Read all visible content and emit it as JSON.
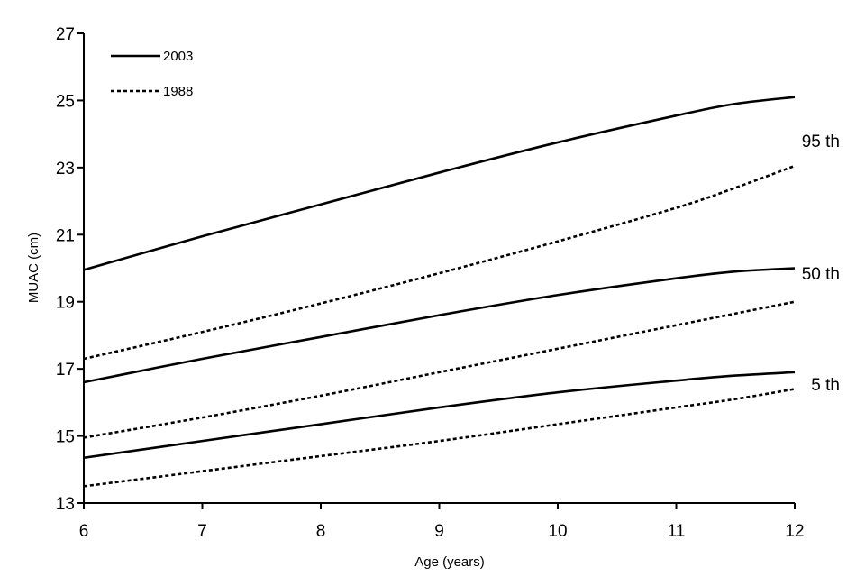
{
  "chart_data": {
    "type": "line",
    "title": "",
    "xlabel": "Age (years)",
    "ylabel": "MUAC (cm)",
    "xlim": [
      6,
      12
    ],
    "ylim": [
      13,
      27
    ],
    "x_ticks": [
      6,
      7,
      8,
      9,
      10,
      11,
      12
    ],
    "y_ticks": [
      13,
      15,
      17,
      19,
      21,
      23,
      25,
      27
    ],
    "grid": false,
    "legend": {
      "placement": "top-left",
      "entries": [
        {
          "label": "2003",
          "style": "solid"
        },
        {
          "label": "1988",
          "style": "dotted"
        }
      ]
    },
    "series": [
      {
        "year": "2003",
        "percentile": "95 th",
        "style": "solid",
        "x": [
          6,
          7,
          8,
          9,
          10,
          11,
          11.5,
          12
        ],
        "y": [
          19.95,
          20.95,
          21.9,
          22.85,
          23.75,
          24.55,
          24.9,
          25.1
        ]
      },
      {
        "year": "1988",
        "percentile": "95 th",
        "style": "dotted",
        "x": [
          6,
          7,
          8,
          9,
          10,
          11,
          11.5,
          12
        ],
        "y": [
          17.3,
          18.1,
          18.95,
          19.85,
          20.8,
          21.8,
          22.4,
          23.05
        ]
      },
      {
        "year": "2003",
        "percentile": "50 th",
        "style": "solid",
        "x": [
          6,
          7,
          8,
          9,
          10,
          11,
          11.5,
          12
        ],
        "y": [
          16.6,
          17.3,
          17.95,
          18.6,
          19.2,
          19.7,
          19.9,
          20.0
        ]
      },
      {
        "year": "1988",
        "percentile": "50 th",
        "style": "dotted",
        "x": [
          6,
          7,
          8,
          9,
          10,
          11,
          11.5,
          12
        ],
        "y": [
          14.95,
          15.55,
          16.2,
          16.9,
          17.6,
          18.3,
          18.65,
          19.0
        ]
      },
      {
        "year": "2003",
        "percentile": "5 th",
        "style": "solid",
        "x": [
          6,
          7,
          8,
          9,
          10,
          11,
          11.5,
          12
        ],
        "y": [
          14.35,
          14.85,
          15.35,
          15.85,
          16.3,
          16.65,
          16.8,
          16.9
        ]
      },
      {
        "year": "1988",
        "percentile": "5 th",
        "style": "dotted",
        "x": [
          6,
          7,
          8,
          9,
          10,
          11,
          11.5,
          12
        ],
        "y": [
          13.5,
          13.95,
          14.4,
          14.85,
          15.35,
          15.85,
          16.1,
          16.4
        ]
      }
    ],
    "percentile_labels": [
      {
        "text": "95 th",
        "y": 23.8
      },
      {
        "text": "50 th",
        "y": 19.85
      },
      {
        "text": "5 th",
        "y": 16.55
      }
    ]
  }
}
